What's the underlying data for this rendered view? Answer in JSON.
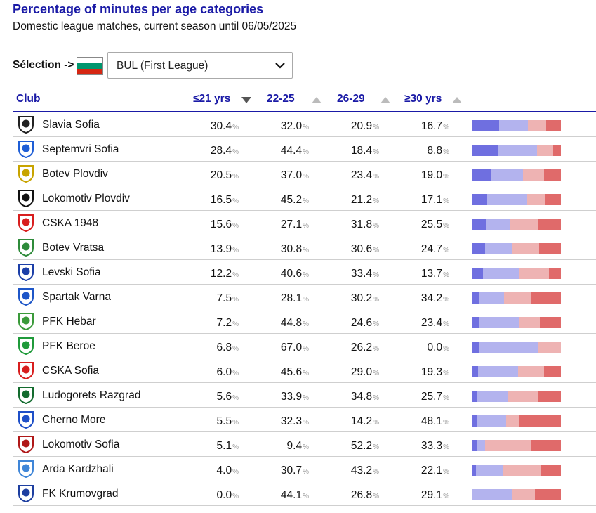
{
  "header": {
    "title": "Percentage of minutes per age categories",
    "subtitle": "Domestic league matches, current season until 06/05/2025"
  },
  "selection": {
    "label": "Sélection ->",
    "flag_colors": [
      "#ffffff",
      "#00966e",
      "#d62612"
    ],
    "value": "BUL (First League)"
  },
  "table": {
    "columns": {
      "club": "Club",
      "u21": "≤21 yrs",
      "a22_25": "22-25",
      "a26_29": "26-29",
      "o30": "≥30 yrs"
    },
    "sorted_column": "u21",
    "percent_sign": "%",
    "bar_colors": [
      "#6f6fe0",
      "#b3b3ee",
      "#eeb3b3",
      "#e06a6a"
    ],
    "rows": [
      {
        "club": "Slavia Sofia",
        "u21": "30.4",
        "a22_25": "32.0",
        "a26_29": "20.9",
        "o30": "16.7",
        "logo_color": "#222222",
        "logo_icon": "slavia-crest-icon"
      },
      {
        "club": "Septemvri Sofia",
        "u21": "28.4",
        "a22_25": "44.4",
        "a26_29": "18.4",
        "o30": "8.8",
        "logo_color": "#1e5ed6",
        "logo_icon": "septemvri-crest-icon"
      },
      {
        "club": "Botev Plovdiv",
        "u21": "20.5",
        "a22_25": "37.0",
        "a26_29": "23.4",
        "o30": "19.0",
        "logo_color": "#c8a400",
        "logo_icon": "botev-plovdiv-crest-icon"
      },
      {
        "club": "Lokomotiv Plovdiv",
        "u21": "16.5",
        "a22_25": "45.2",
        "a26_29": "21.2",
        "o30": "17.1",
        "logo_color": "#111111",
        "logo_icon": "lokomotiv-plovdiv-crest-icon"
      },
      {
        "club": "CSKA 1948",
        "u21": "15.6",
        "a22_25": "27.1",
        "a26_29": "31.8",
        "o30": "25.5",
        "logo_color": "#d81e1e",
        "logo_icon": "cska-1948-crest-icon"
      },
      {
        "club": "Botev Vratsa",
        "u21": "13.9",
        "a22_25": "30.8",
        "a26_29": "30.6",
        "o30": "24.7",
        "logo_color": "#2e8b3a",
        "logo_icon": "botev-vratsa-crest-icon"
      },
      {
        "club": "Levski Sofia",
        "u21": "12.2",
        "a22_25": "40.6",
        "a26_29": "33.4",
        "o30": "13.7",
        "logo_color": "#1c3fa8",
        "logo_icon": "levski-crest-icon"
      },
      {
        "club": "Spartak Varna",
        "u21": "7.5",
        "a22_25": "28.1",
        "a26_29": "30.2",
        "o30": "34.2",
        "logo_color": "#1e56c8",
        "logo_icon": "spartak-varna-crest-icon"
      },
      {
        "club": "PFK Hebar",
        "u21": "7.2",
        "a22_25": "44.8",
        "a26_29": "24.6",
        "o30": "23.4",
        "logo_color": "#3a9a3a",
        "logo_icon": "hebar-crest-icon"
      },
      {
        "club": "PFK Beroe",
        "u21": "6.8",
        "a22_25": "67.0",
        "a26_29": "26.2",
        "o30": "0.0",
        "logo_color": "#1f9a3a",
        "logo_icon": "beroe-crest-icon"
      },
      {
        "club": "CSKA Sofia",
        "u21": "6.0",
        "a22_25": "45.6",
        "a26_29": "29.0",
        "o30": "19.3",
        "logo_color": "#d81e1e",
        "logo_icon": "cska-sofia-crest-icon"
      },
      {
        "club": "Ludogorets Razgrad",
        "u21": "5.6",
        "a22_25": "33.9",
        "a26_29": "34.8",
        "o30": "25.7",
        "logo_color": "#136b2e",
        "logo_icon": "ludogorets-crest-icon"
      },
      {
        "club": "Cherno More",
        "u21": "5.5",
        "a22_25": "32.3",
        "a26_29": "14.2",
        "o30": "48.1",
        "logo_color": "#1e4fc8",
        "logo_icon": "cherno-more-crest-icon"
      },
      {
        "club": "Lokomotiv Sofia",
        "u21": "5.1",
        "a22_25": "9.4",
        "a26_29": "52.2",
        "o30": "33.3",
        "logo_color": "#b01818",
        "logo_icon": "lokomotiv-sofia-crest-icon"
      },
      {
        "club": "Arda Kardzhali",
        "u21": "4.0",
        "a22_25": "30.7",
        "a26_29": "43.2",
        "o30": "22.1",
        "logo_color": "#3f86d8",
        "logo_icon": "arda-crest-icon"
      },
      {
        "club": "FK Krumovgrad",
        "u21": "0.0",
        "a22_25": "44.1",
        "a26_29": "26.8",
        "o30": "29.1",
        "logo_color": "#1e3fa0",
        "logo_icon": "krumovgrad-crest-icon"
      }
    ]
  }
}
